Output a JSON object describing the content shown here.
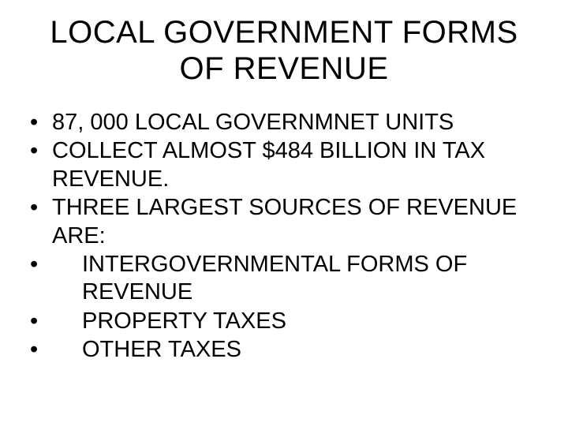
{
  "slide": {
    "title": "LOCAL GOVERNMENT  FORMS OF REVENUE",
    "bullets": [
      {
        "text": "87, 000 LOCAL GOVERNMNET UNITS",
        "indent": false
      },
      {
        "text": "COLLECT ALMOST $484 BILLION IN TAX REVENUE.",
        "indent": false
      },
      {
        "text": "THREE LARGEST SOURCES OF REVENUE ARE:",
        "indent": false
      },
      {
        "text": "INTERGOVERNMENTAL FORMS OF REVENUE",
        "indent": true
      },
      {
        "text": "PROPERTY TAXES",
        "indent": true
      },
      {
        "text": "OTHER TAXES",
        "indent": true
      }
    ],
    "styles": {
      "background_color": "#ffffff",
      "text_color": "#000000",
      "title_fontsize": 40,
      "bullet_fontsize": 29,
      "font_family": "Arial"
    }
  }
}
